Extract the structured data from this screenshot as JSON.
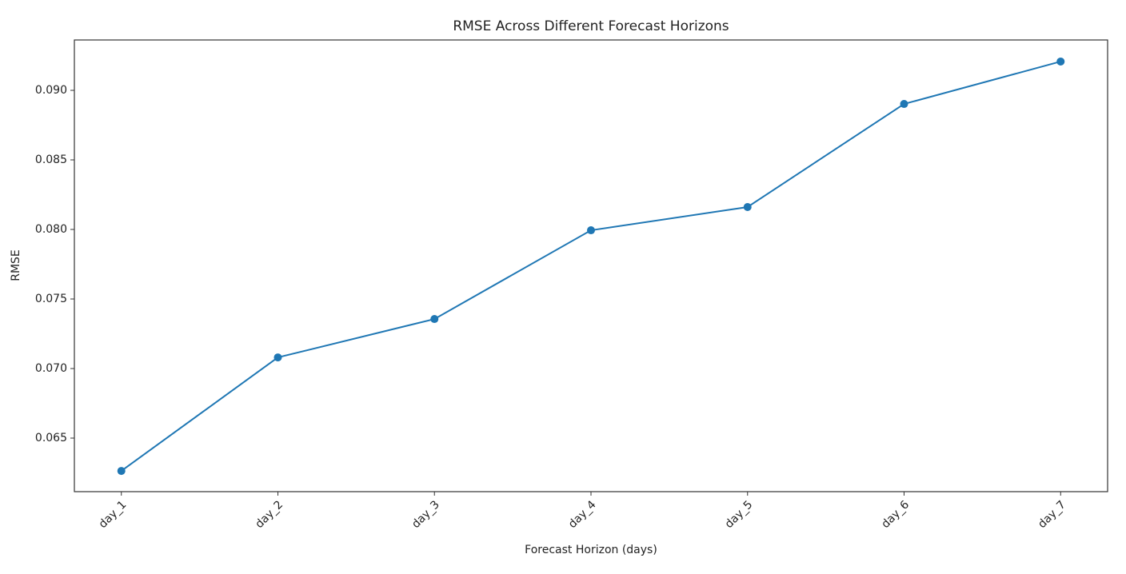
{
  "chart_data": {
    "type": "line",
    "title": "RMSE Across Different Forecast Horizons",
    "x_label": "Forecast Horizon (days)",
    "y_label": "RMSE",
    "categories": [
      "day_1",
      "day_2",
      "day_3",
      "day_4",
      "day_5",
      "day_6",
      "day_7"
    ],
    "series": [
      {
        "name": "RMSE",
        "color": "#1f77b4",
        "values": [
          0.06264,
          0.0708,
          0.07356,
          0.07994,
          0.08161,
          0.08902,
          0.09207
        ]
      }
    ],
    "ylim": [
      0.06115,
      0.09362
    ],
    "yticks": [
      0.065,
      {
        "value": 0.07,
        "label": "0.070"
      },
      0.075,
      {
        "value": 0.08,
        "label": "0.080"
      },
      0.085,
      {
        "value": 0.09,
        "label": "0.090"
      }
    ],
    "markers": true
  }
}
